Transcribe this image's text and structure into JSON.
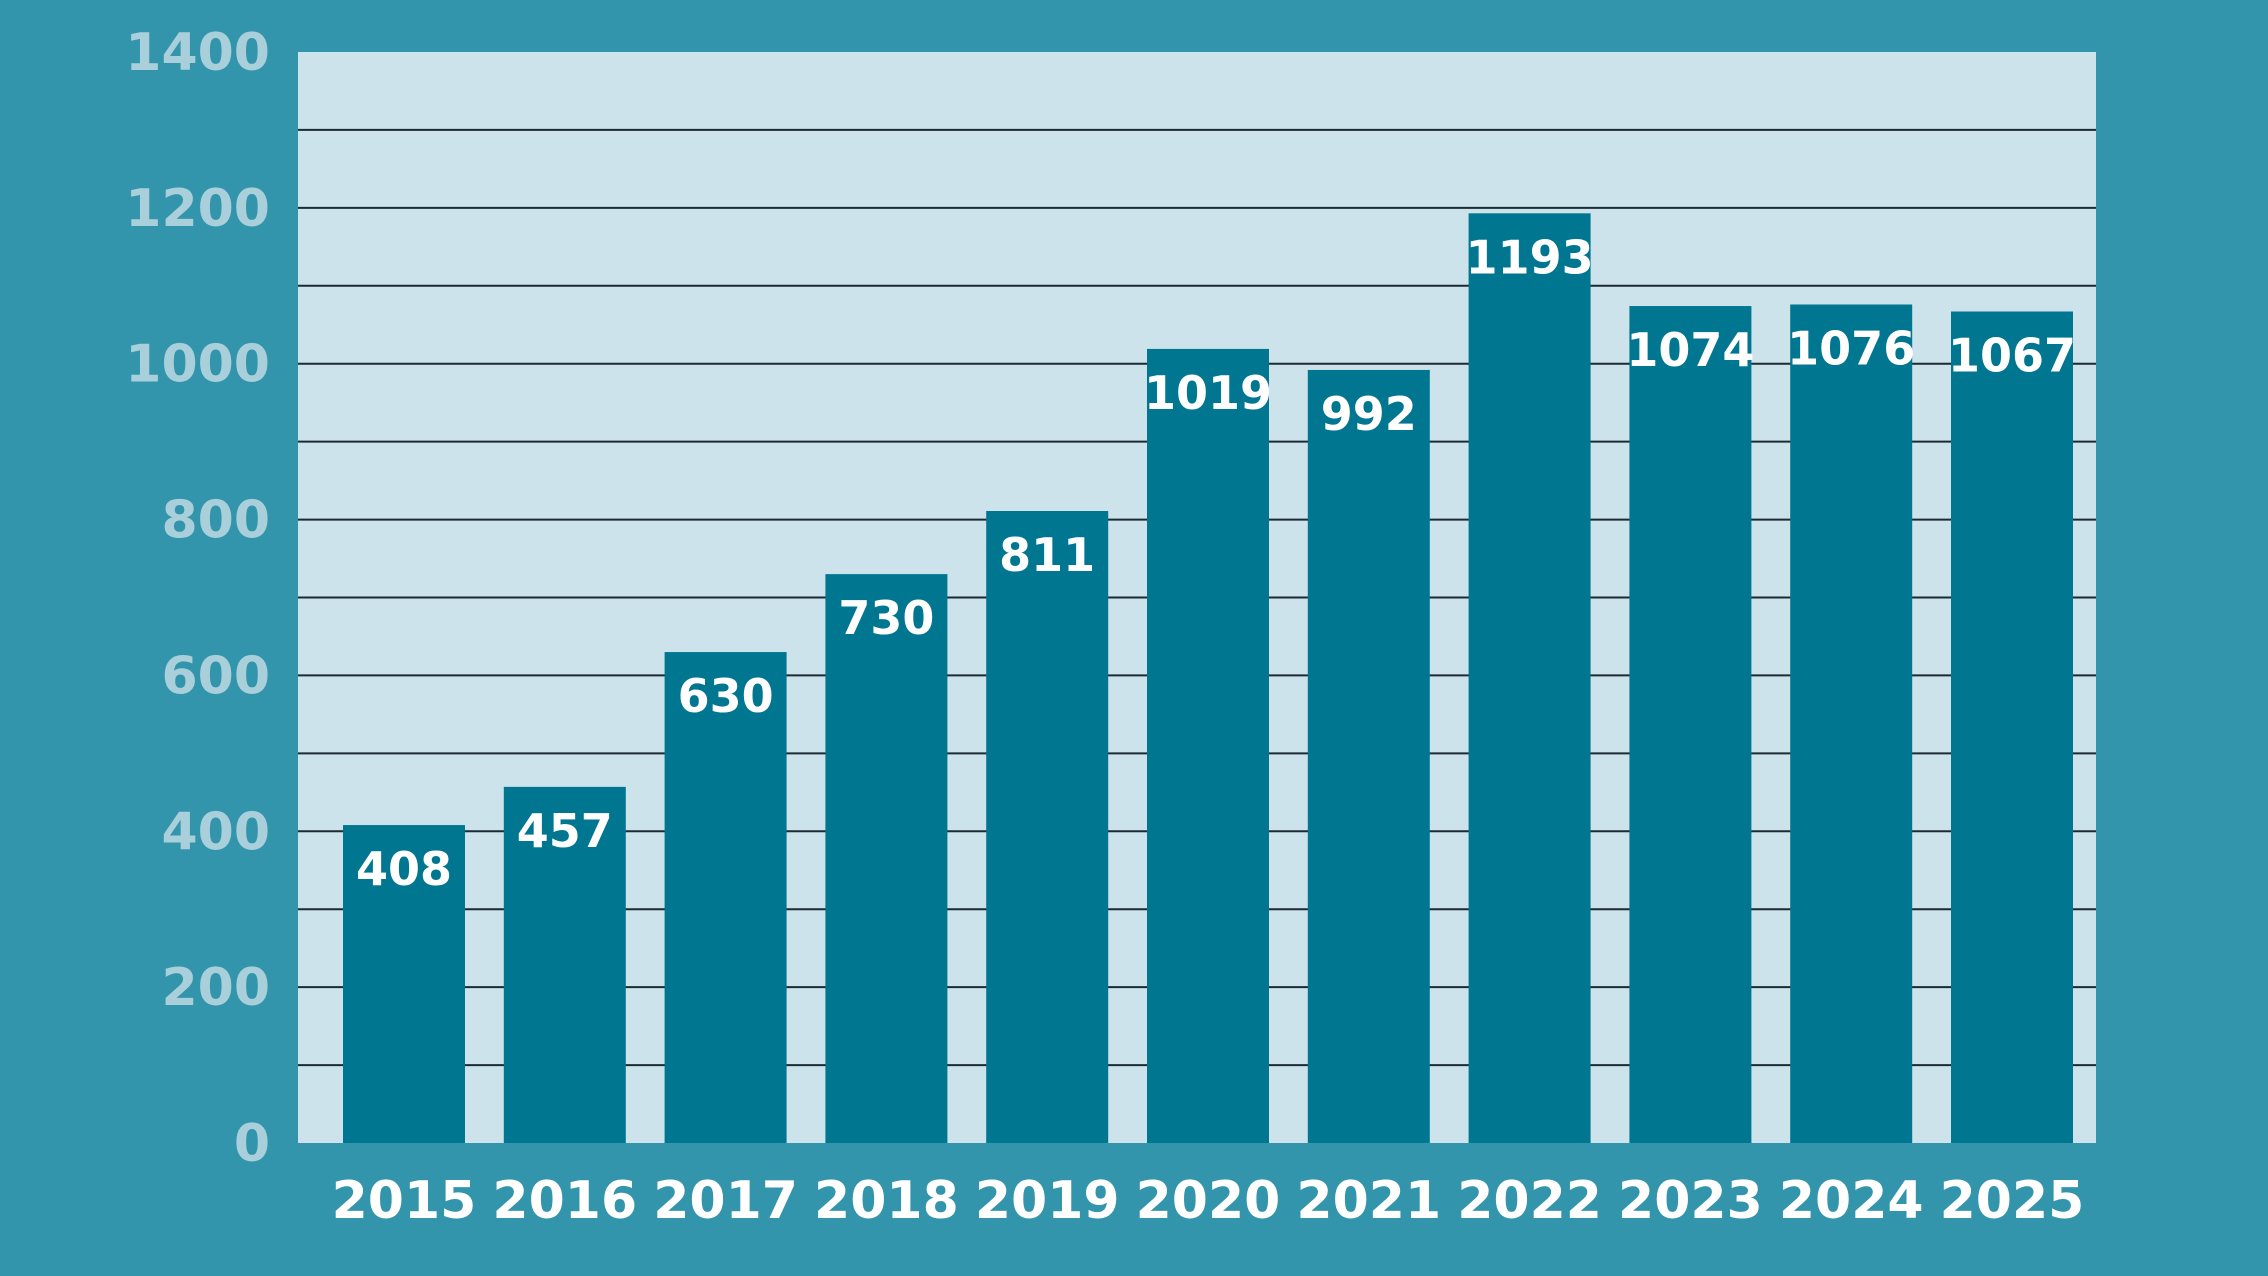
{
  "chart_data": {
    "type": "bar",
    "categories": [
      "2015",
      "2016",
      "2017",
      "2018",
      "2019",
      "2020",
      "2021",
      "2022",
      "2023",
      "2024",
      "2025"
    ],
    "values": [
      408,
      457,
      630,
      730,
      811,
      1019,
      992,
      1193,
      1074,
      1076,
      1067
    ],
    "title": "",
    "xlabel": "",
    "ylabel": "",
    "ylim": [
      0,
      1400
    ],
    "yticks": [
      "0",
      "200",
      "400",
      "600",
      "800",
      "1000",
      "1200",
      "1400"
    ],
    "grid": true,
    "data_labels": true,
    "colors": {
      "page_background": "#3395ac",
      "plot_background": "#cde3eb",
      "bar": "#007690",
      "gridline": "#1c2b33",
      "y_tick_text": "#a9cfdb",
      "x_tick_text": "#ffffff",
      "data_label_text": "#ffffff"
    }
  }
}
